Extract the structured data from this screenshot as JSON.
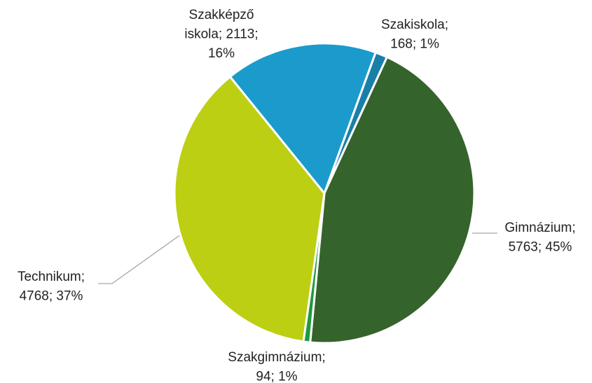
{
  "chart_data": {
    "type": "pie",
    "values": [
      168,
      5763,
      94,
      4768,
      2113
    ],
    "value_labels": [
      [
        "Szakiskola;",
        "168; 1%"
      ],
      [
        "Gimnázium;",
        "5763; 45%"
      ],
      [
        "Szakgimnázium;",
        "94; 1%"
      ],
      [
        "Technikum;",
        "4768; 37%"
      ],
      [
        "Szakképző",
        "iskola; 2113;",
        "16%"
      ]
    ],
    "colors": [
      "#1a7fa8",
      "#35632c",
      "#1f9a3c",
      "#bccf12",
      "#1a9bcc"
    ]
  }
}
